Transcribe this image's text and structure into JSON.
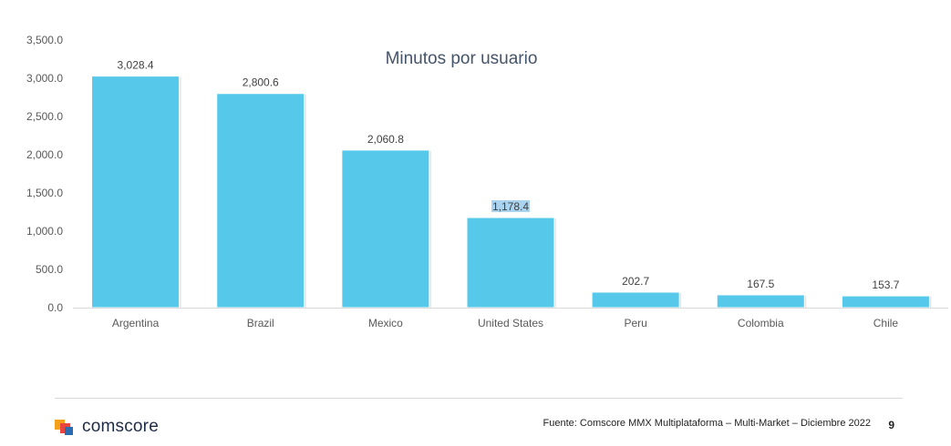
{
  "chart_data": {
    "type": "bar",
    "title": "Minutos por usuario",
    "categories": [
      "Argentina",
      "Brazil",
      "Mexico",
      "United States",
      "Peru",
      "Colombia",
      "Chile"
    ],
    "values": [
      3028.4,
      2800.6,
      2060.8,
      1178.4,
      202.7,
      167.5,
      153.7
    ],
    "data_labels": [
      "3,028.4",
      "2,800.6",
      "2,060.8",
      "1,178.4",
      "202.7",
      "167.5",
      "153.7"
    ],
    "ylim": [
      0,
      3500
    ],
    "yticks": [
      0,
      500,
      1000,
      1500,
      2000,
      2500,
      3000,
      3500
    ],
    "ytick_labels": [
      "0.0",
      "500.0",
      "1,000.0",
      "1,500.0",
      "2,000.0",
      "2,500.0",
      "3,000.0",
      "3,500.0"
    ],
    "xlabel": "",
    "ylabel": "",
    "grid": false,
    "bar_color": "#56c8ea",
    "highlighted_label_index": 3,
    "highlight_color": "#a9d3ee"
  },
  "footer": {
    "brand": "comscore",
    "source": "Fuente: Comscore MMX Multiplataforma – Multi-Market – Diciembre 2022",
    "page_number": "9"
  }
}
